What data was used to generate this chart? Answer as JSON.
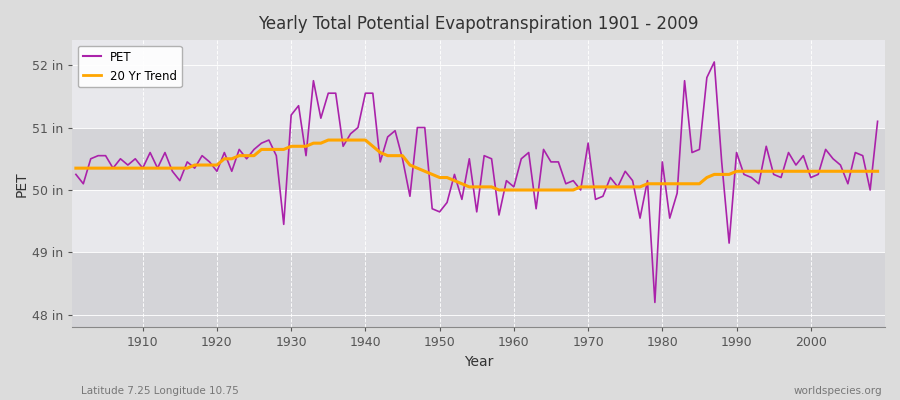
{
  "title": "Yearly Total Potential Evapotranspiration 1901 - 2009",
  "xlabel": "Year",
  "ylabel": "PET",
  "bottom_left": "Latitude 7.25 Longitude 10.75",
  "bottom_right": "worldspecies.org",
  "fig_color": "#dcdcdc",
  "plot_bg_color": "#dcdcdc",
  "band_light": "#e8e8ec",
  "band_dark": "#d4d4d8",
  "pet_color": "#aa22aa",
  "trend_color": "#ffa500",
  "ylim": [
    47.8,
    52.4
  ],
  "xlim": [
    1900.5,
    2010
  ],
  "yticks": [
    48,
    49,
    50,
    51,
    52
  ],
  "ytick_labels": [
    "48 in",
    "49 in",
    "50 in",
    "51 in",
    "52 in"
  ],
  "xticks": [
    1910,
    1920,
    1930,
    1940,
    1950,
    1960,
    1970,
    1980,
    1990,
    2000
  ],
  "years": [
    1901,
    1902,
    1903,
    1904,
    1905,
    1906,
    1907,
    1908,
    1909,
    1910,
    1911,
    1912,
    1913,
    1914,
    1915,
    1916,
    1917,
    1918,
    1919,
    1920,
    1921,
    1922,
    1923,
    1924,
    1925,
    1926,
    1927,
    1928,
    1929,
    1930,
    1931,
    1932,
    1933,
    1934,
    1935,
    1936,
    1937,
    1938,
    1939,
    1940,
    1941,
    1942,
    1943,
    1944,
    1945,
    1946,
    1947,
    1948,
    1949,
    1950,
    1951,
    1952,
    1953,
    1954,
    1955,
    1956,
    1957,
    1958,
    1959,
    1960,
    1961,
    1962,
    1963,
    1964,
    1965,
    1966,
    1967,
    1968,
    1969,
    1970,
    1971,
    1972,
    1973,
    1974,
    1975,
    1976,
    1977,
    1978,
    1979,
    1980,
    1981,
    1982,
    1983,
    1984,
    1985,
    1986,
    1987,
    1988,
    1989,
    1990,
    1991,
    1992,
    1993,
    1994,
    1995,
    1996,
    1997,
    1998,
    1999,
    2000,
    2001,
    2002,
    2003,
    2004,
    2005,
    2006,
    2007,
    2008,
    2009
  ],
  "pet": [
    50.25,
    50.1,
    50.5,
    50.55,
    50.55,
    50.35,
    50.5,
    50.4,
    50.5,
    50.35,
    50.6,
    50.35,
    50.6,
    50.3,
    50.15,
    50.45,
    50.35,
    50.55,
    50.45,
    50.3,
    50.6,
    50.3,
    50.65,
    50.5,
    50.65,
    50.75,
    50.8,
    50.55,
    49.45,
    51.2,
    51.35,
    50.55,
    51.75,
    51.15,
    51.55,
    51.55,
    50.7,
    50.9,
    51.0,
    51.55,
    51.55,
    50.45,
    50.85,
    50.95,
    50.5,
    49.9,
    51.0,
    51.0,
    49.7,
    49.65,
    49.8,
    50.25,
    49.85,
    50.5,
    49.65,
    50.55,
    50.5,
    49.6,
    50.15,
    50.05,
    50.5,
    50.6,
    49.7,
    50.65,
    50.45,
    50.45,
    50.1,
    50.15,
    50.0,
    50.75,
    49.85,
    49.9,
    50.2,
    50.05,
    50.3,
    50.15,
    49.55,
    50.15,
    48.2,
    50.45,
    49.55,
    49.95,
    51.75,
    50.6,
    50.65,
    51.8,
    52.05,
    50.45,
    49.15,
    50.6,
    50.25,
    50.2,
    50.1,
    50.7,
    50.25,
    50.2,
    50.6,
    50.4,
    50.55,
    50.2,
    50.25,
    50.65,
    50.5,
    50.4,
    50.1,
    50.6,
    50.55,
    50.0,
    51.1
  ],
  "trend": [
    50.35,
    50.35,
    50.35,
    50.35,
    50.35,
    50.35,
    50.35,
    50.35,
    50.35,
    50.35,
    50.35,
    50.35,
    50.35,
    50.35,
    50.35,
    50.35,
    50.4,
    50.4,
    50.4,
    50.4,
    50.5,
    50.5,
    50.55,
    50.55,
    50.55,
    50.65,
    50.65,
    50.65,
    50.65,
    50.7,
    50.7,
    50.7,
    50.75,
    50.75,
    50.8,
    50.8,
    50.8,
    50.8,
    50.8,
    50.8,
    50.7,
    50.6,
    50.55,
    50.55,
    50.55,
    50.4,
    50.35,
    50.3,
    50.25,
    50.2,
    50.2,
    50.15,
    50.1,
    50.05,
    50.05,
    50.05,
    50.05,
    50.0,
    50.0,
    50.0,
    50.0,
    50.0,
    50.0,
    50.0,
    50.0,
    50.0,
    50.0,
    50.0,
    50.05,
    50.05,
    50.05,
    50.05,
    50.05,
    50.05,
    50.05,
    50.05,
    50.05,
    50.1,
    50.1,
    50.1,
    50.1,
    50.1,
    50.1,
    50.1,
    50.1,
    50.2,
    50.25,
    50.25,
    50.25,
    50.3,
    50.3,
    50.3,
    50.3,
    50.3,
    50.3,
    50.3,
    50.3,
    50.3,
    50.3,
    50.3,
    50.3,
    50.3,
    50.3,
    50.3,
    50.3,
    50.3,
    50.3,
    50.3,
    50.3
  ]
}
